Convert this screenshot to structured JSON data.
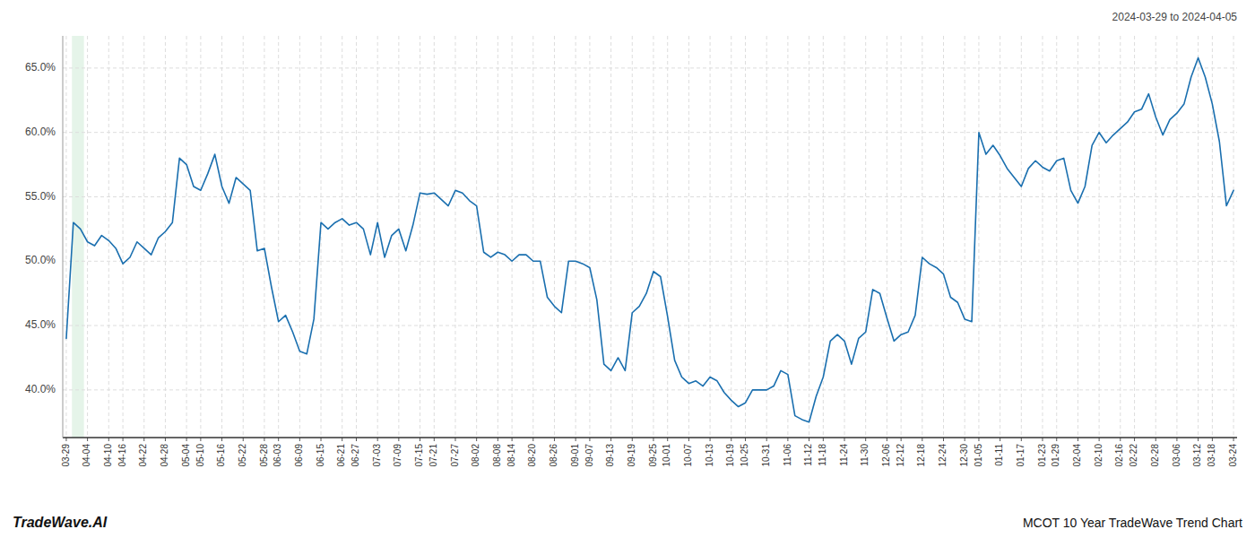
{
  "chart_data": {
    "type": "line",
    "title": "MCOT 10 Year TradeWave Trend Chart",
    "subtitle": "2024-03-29 to 2024-04-05",
    "annotations": [
      "TradeWave.AI"
    ],
    "color": "#1a6faf",
    "grid": true,
    "highlight": {
      "x_start": 0.8,
      "x_end": 2.5,
      "color": "#d4edda"
    },
    "ylim": [
      0.363,
      0.675
    ],
    "yticks": [
      {
        "value": 0.4,
        "label": "40.0%"
      },
      {
        "value": 0.45,
        "label": "45.0%"
      },
      {
        "value": 0.5,
        "label": "50.0%"
      },
      {
        "value": 0.55,
        "label": "55.0%"
      },
      {
        "value": 0.6,
        "label": "60.0%"
      },
      {
        "value": 0.65,
        "label": "65.0%"
      }
    ],
    "categories": [
      "03-29",
      null,
      null,
      "04-04",
      null,
      null,
      "04-10",
      null,
      "04-16",
      null,
      null,
      "04-22",
      null,
      null,
      "04-28",
      null,
      null,
      "05-04",
      null,
      "05-10",
      null,
      null,
      "05-16",
      null,
      null,
      "05-22",
      null,
      null,
      "05-28",
      null,
      "06-03",
      null,
      null,
      "06-09",
      null,
      null,
      "06-15",
      null,
      null,
      "06-21",
      null,
      "06-27",
      null,
      null,
      "07-03",
      null,
      null,
      "07-09",
      null,
      null,
      "07-15",
      null,
      "07-21",
      null,
      null,
      "07-27",
      null,
      null,
      "08-02",
      null,
      null,
      "08-08",
      null,
      "08-14",
      null,
      null,
      "08-20",
      null,
      null,
      "08-26",
      null,
      null,
      "09-01",
      null,
      "09-07",
      null,
      null,
      "09-13",
      null,
      null,
      "09-19",
      null,
      null,
      "09-25",
      null,
      "10-01",
      null,
      null,
      "10-07",
      null,
      null,
      "10-13",
      null,
      null,
      "10-19",
      null,
      "10-25",
      null,
      null,
      "10-31",
      null,
      null,
      "11-06",
      null,
      null,
      "11-12",
      null,
      "11-18",
      null,
      null,
      "11-24",
      null,
      null,
      "11-30",
      null,
      null,
      "12-06",
      null,
      "12-12",
      null,
      null,
      "12-18",
      null,
      null,
      "12-24",
      null,
      null,
      "12-30",
      null,
      "01-05",
      null,
      null,
      "01-11",
      null,
      null,
      "01-17",
      null,
      null,
      "01-23",
      null,
      "01-29",
      null,
      null,
      "02-04",
      null,
      null,
      "02-10",
      null,
      null,
      "02-16",
      null,
      "02-22",
      null,
      null,
      "02-28",
      null,
      null,
      "03-06",
      null,
      null,
      "03-12",
      null,
      "03-18",
      null,
      null,
      "03-24"
    ],
    "values": [
      0.44,
      0.53,
      0.525,
      0.515,
      0.512,
      0.52,
      0.516,
      0.51,
      0.498,
      0.503,
      0.515,
      0.51,
      0.505,
      0.518,
      0.523,
      0.53,
      0.58,
      0.575,
      0.558,
      0.555,
      0.568,
      0.583,
      0.558,
      0.545,
      0.565,
      0.56,
      0.555,
      0.508,
      0.51,
      0.48,
      0.453,
      0.458,
      0.445,
      0.43,
      0.428,
      0.455,
      0.53,
      0.525,
      0.53,
      0.533,
      0.528,
      0.53,
      0.525,
      0.505,
      0.53,
      0.503,
      0.52,
      0.525,
      0.508,
      0.528,
      0.553,
      0.552,
      0.553,
      0.548,
      0.543,
      0.555,
      0.553,
      0.547,
      0.543,
      0.507,
      0.503,
      0.507,
      0.505,
      0.5,
      0.505,
      0.505,
      0.5,
      0.5,
      0.472,
      0.465,
      0.46,
      0.5,
      0.5,
      0.498,
      0.495,
      0.47,
      0.42,
      0.415,
      0.425,
      0.415,
      0.46,
      0.465,
      0.475,
      0.492,
      0.488,
      0.457,
      0.423,
      0.41,
      0.405,
      0.407,
      0.403,
      0.41,
      0.407,
      0.398,
      0.392,
      0.387,
      0.39,
      0.4,
      0.4,
      0.4,
      0.403,
      0.415,
      0.412,
      0.38,
      0.377,
      0.375,
      0.395,
      0.41,
      0.438,
      0.443,
      0.438,
      0.42,
      0.44,
      0.445,
      0.478,
      0.475,
      0.456,
      0.438,
      0.443,
      0.445,
      0.458,
      0.503,
      0.498,
      0.495,
      0.49,
      0.472,
      0.468,
      0.455,
      0.453,
      0.6,
      0.583,
      0.59,
      0.582,
      0.572,
      0.565,
      0.558,
      0.572,
      0.578,
      0.573,
      0.57,
      0.578,
      0.58,
      0.555,
      0.545,
      0.558,
      0.59,
      0.6,
      0.592,
      0.598,
      0.603,
      0.608,
      0.616,
      0.618,
      0.63,
      0.612,
      0.598,
      0.61,
      0.615,
      0.622,
      0.643,
      0.658,
      0.643,
      0.622,
      0.593,
      0.543,
      0.555
    ]
  }
}
